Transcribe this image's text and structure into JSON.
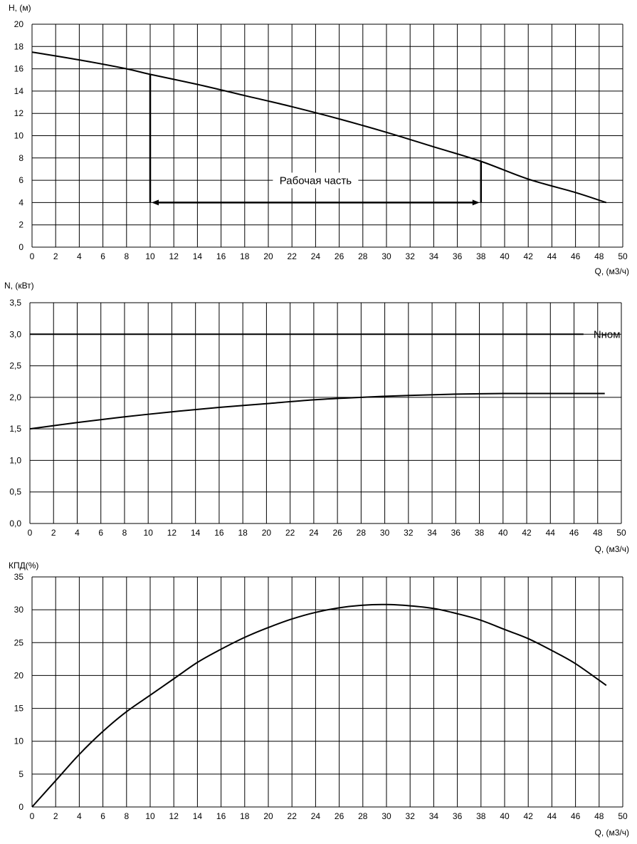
{
  "chart_data": [
    {
      "type": "line",
      "ylabel": "H, (м)",
      "xlabel": "Q, (м3/ч)",
      "xlim": [
        0,
        50
      ],
      "ylim": [
        0,
        20
      ],
      "x_ticks": [
        "0",
        "2",
        "4",
        "6",
        "8",
        "10",
        "12",
        "14",
        "16",
        "18",
        "20",
        "22",
        "24",
        "26",
        "28",
        "30",
        "32",
        "34",
        "36",
        "38",
        "40",
        "42",
        "44",
        "46",
        "48",
        "50"
      ],
      "y_ticks": [
        "0",
        "2",
        "4",
        "6",
        "8",
        "10",
        "12",
        "14",
        "16",
        "18",
        "20"
      ],
      "grid": true,
      "series": [
        {
          "x": [
            0,
            4,
            8,
            10,
            14,
            18,
            22,
            26,
            30,
            34,
            38,
            42,
            46,
            48.6
          ],
          "y": [
            17.5,
            16.8,
            16.0,
            15.5,
            14.6,
            13.6,
            12.6,
            11.5,
            10.3,
            9.0,
            7.7,
            6.1,
            4.9,
            4.0
          ]
        }
      ],
      "annotations": {
        "working_range_label": "Рабочая часть",
        "working_range_x": [
          10,
          38
        ],
        "working_range_arrow_y": 4,
        "working_range_top_y": [
          15.5,
          7.7
        ]
      }
    },
    {
      "type": "line",
      "ylabel": "N, (кВт)",
      "xlabel": "Q, (м3/ч)",
      "xlim": [
        0,
        50
      ],
      "ylim": [
        0,
        3.5
      ],
      "x_ticks": [
        "0",
        "2",
        "4",
        "6",
        "8",
        "10",
        "12",
        "14",
        "16",
        "18",
        "20",
        "22",
        "24",
        "26",
        "28",
        "30",
        "32",
        "34",
        "36",
        "38",
        "40",
        "42",
        "44",
        "46",
        "48",
        "50"
      ],
      "y_ticks": [
        "0,0",
        "0,5",
        "1,0",
        "1,5",
        "2,0",
        "2,5",
        "3,0",
        "3,5"
      ],
      "grid": true,
      "series": [
        {
          "x": [
            0,
            4,
            8,
            12,
            16,
            20,
            24,
            28,
            32,
            36,
            40,
            44,
            48.6
          ],
          "y": [
            1.5,
            1.6,
            1.69,
            1.77,
            1.84,
            1.9,
            1.96,
            2.0,
            2.03,
            2.05,
            2.06,
            2.06,
            2.06
          ]
        },
        {
          "name": "Nном",
          "x": [
            0,
            46.8
          ],
          "y": [
            3.0,
            3.0
          ]
        }
      ]
    },
    {
      "type": "line",
      "ylabel": "КПД(%)",
      "xlabel": "Q, (м3/ч)",
      "xlim": [
        0,
        50
      ],
      "ylim": [
        0,
        35
      ],
      "x_ticks": [
        "0",
        "2",
        "4",
        "6",
        "8",
        "10",
        "12",
        "14",
        "16",
        "18",
        "20",
        "22",
        "24",
        "26",
        "28",
        "30",
        "32",
        "34",
        "36",
        "38",
        "40",
        "42",
        "44",
        "46",
        "48",
        "50"
      ],
      "y_ticks": [
        "0",
        "5",
        "10",
        "15",
        "20",
        "25",
        "30",
        "35"
      ],
      "grid": true,
      "series": [
        {
          "x": [
            0,
            2,
            4,
            6,
            8,
            10,
            12,
            14,
            16,
            18,
            20,
            22,
            24,
            26,
            28,
            30,
            32,
            34,
            36,
            38,
            40,
            42,
            44,
            46,
            48.6
          ],
          "y": [
            0,
            4,
            8,
            11.5,
            14.5,
            17,
            19.5,
            22,
            24,
            25.8,
            27.3,
            28.6,
            29.6,
            30.3,
            30.7,
            30.8,
            30.6,
            30.2,
            29.4,
            28.4,
            27.0,
            25.6,
            23.8,
            21.8,
            18.5
          ]
        }
      ]
    }
  ]
}
